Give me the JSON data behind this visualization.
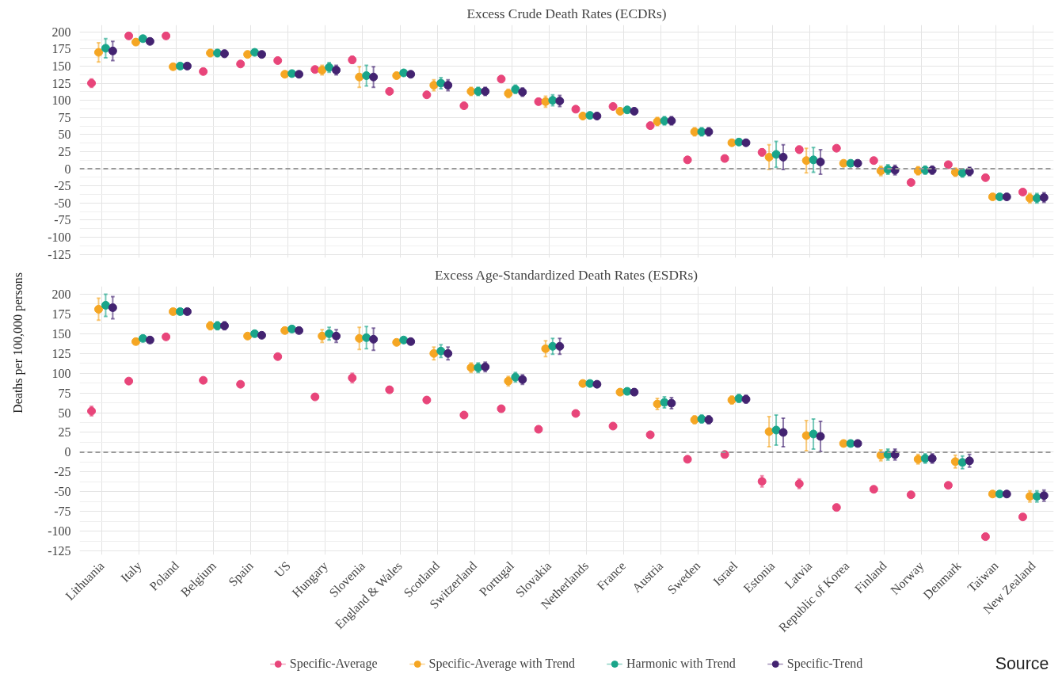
{
  "chart_data": [
    {
      "type": "scatter",
      "title": "Excess Crude Death Rates (ECDRs)",
      "ylabel": "Deaths per 100,000 persons",
      "categories": [
        "Lithuania",
        "Italy",
        "Poland",
        "Belgium",
        "Spain",
        "US",
        "Hungary",
        "Slovenia",
        "England & Wales",
        "Scotland",
        "Switzerland",
        "Portugal",
        "Slovakia",
        "Netherlands",
        "France",
        "Austria",
        "Sweden",
        "Israel",
        "Estonia",
        "Latvia",
        "Republic of Korea",
        "Finland",
        "Norway",
        "Denmark",
        "Taiwan",
        "New Zealand"
      ],
      "ylim": [
        -130,
        210
      ],
      "yticks": [
        -125,
        -100,
        -75,
        -50,
        -25,
        0,
        25,
        50,
        75,
        100,
        125,
        150,
        175,
        200
      ],
      "grid": true,
      "marker": "circle",
      "tick_labels": "y",
      "legend": "bottom",
      "ref_lines": [
        {
          "axis": "y",
          "value": 0,
          "color": "#999999",
          "line_style": "dashed"
        }
      ],
      "series": [
        {
          "name": "Specific-Average",
          "color": "#e8457a",
          "values": [
            125,
            194,
            194,
            142,
            153,
            158,
            145,
            159,
            113,
            108,
            92,
            131,
            98,
            87,
            91,
            63,
            13,
            15,
            24,
            28,
            30,
            12,
            -20,
            6,
            -13,
            -34
          ],
          "errors": [
            6,
            2,
            2,
            2,
            2,
            2,
            2,
            5,
            2,
            2,
            2,
            2,
            3,
            2,
            2,
            2,
            2,
            2,
            5,
            5,
            2,
            3,
            3,
            3,
            2,
            2
          ]
        },
        {
          "name": "Specific-Average with Trend",
          "color": "#f5a623",
          "values": [
            170,
            185,
            149,
            169,
            167,
            138,
            144,
            134,
            136,
            122,
            113,
            110,
            98,
            77,
            84,
            69,
            54,
            38,
            17,
            12,
            8,
            -3,
            -3,
            -5,
            -41,
            -43
          ],
          "errors": [
            14,
            2,
            3,
            5,
            2,
            2,
            7,
            15,
            2,
            8,
            6,
            6,
            8,
            3,
            2,
            6,
            6,
            3,
            18,
            18,
            2,
            7,
            6,
            6,
            3,
            7
          ]
        },
        {
          "name": "Harmonic with Trend",
          "color": "#1aa58a",
          "values": [
            176,
            190,
            150,
            169,
            170,
            139,
            148,
            136,
            140,
            125,
            113,
            116,
            100,
            78,
            86,
            70,
            54,
            39,
            21,
            13,
            8,
            -1,
            -2,
            -6,
            -41,
            -43
          ],
          "errors": [
            14,
            2,
            3,
            5,
            2,
            2,
            7,
            15,
            2,
            8,
            6,
            6,
            8,
            3,
            2,
            6,
            6,
            3,
            19,
            18,
            2,
            7,
            6,
            6,
            3,
            7
          ]
        },
        {
          "name": "Specific-Trend",
          "color": "#432371",
          "values": [
            172,
            186,
            150,
            168,
            167,
            138,
            144,
            134,
            138,
            122,
            113,
            112,
            99,
            77,
            84,
            70,
            54,
            38,
            17,
            10,
            8,
            -2,
            -2,
            -4,
            -41,
            -42
          ],
          "errors": [
            14,
            2,
            3,
            5,
            2,
            2,
            7,
            15,
            2,
            8,
            6,
            6,
            8,
            3,
            2,
            6,
            6,
            3,
            18,
            18,
            2,
            7,
            6,
            6,
            3,
            7
          ]
        }
      ]
    },
    {
      "type": "scatter",
      "title": "Excess Age-Standardized Death Rates (ESDRs)",
      "ylim": [
        -130,
        210
      ],
      "yticks": [
        -125,
        -100,
        -75,
        -50,
        -25,
        0,
        25,
        50,
        75,
        100,
        125,
        150,
        175,
        200
      ],
      "grid": true,
      "marker": "circle",
      "ref_lines": [
        {
          "axis": "y",
          "value": 0,
          "color": "#999999",
          "line_style": "dashed"
        }
      ],
      "annotations": [
        "Source"
      ],
      "series": [
        {
          "color": "#e8457a",
          "values": [
            52,
            90,
            146,
            91,
            86,
            121,
            70,
            94,
            79,
            66,
            47,
            55,
            29,
            49,
            33,
            22,
            -9,
            -3,
            -37,
            -40,
            -70,
            -47,
            -54,
            -42,
            -107,
            -82
          ],
          "errors": [
            6,
            2,
            2,
            2,
            2,
            2,
            2,
            6,
            2,
            2,
            2,
            2,
            3,
            2,
            2,
            2,
            2,
            2,
            7,
            6,
            2,
            3,
            3,
            3,
            2,
            3
          ]
        },
        {
          "color": "#f5a623",
          "values": [
            181,
            140,
            178,
            160,
            147,
            154,
            147,
            144,
            139,
            125,
            107,
            90,
            131,
            87,
            76,
            61,
            41,
            66,
            26,
            21,
            11,
            -4,
            -9,
            -12,
            -53,
            -56
          ],
          "errors": [
            14,
            2,
            2,
            5,
            2,
            2,
            8,
            14,
            2,
            8,
            6,
            6,
            10,
            3,
            2,
            7,
            5,
            5,
            19,
            19,
            2,
            7,
            6,
            8,
            2,
            7
          ]
        },
        {
          "color": "#1aa58a",
          "values": [
            186,
            144,
            178,
            160,
            150,
            156,
            150,
            145,
            142,
            128,
            107,
            95,
            134,
            87,
            77,
            63,
            42,
            68,
            28,
            23,
            11,
            -3,
            -8,
            -13,
            -53,
            -56
          ],
          "errors": [
            14,
            2,
            2,
            5,
            2,
            2,
            8,
            14,
            2,
            8,
            6,
            6,
            10,
            3,
            2,
            7,
            5,
            5,
            19,
            19,
            2,
            7,
            6,
            8,
            2,
            7
          ]
        },
        {
          "color": "#432371",
          "values": [
            183,
            142,
            178,
            160,
            148,
            154,
            147,
            143,
            140,
            125,
            108,
            92,
            134,
            86,
            76,
            62,
            41,
            67,
            25,
            20,
            11,
            -3,
            -8,
            -11,
            -53,
            -55
          ],
          "errors": [
            14,
            2,
            2,
            5,
            2,
            2,
            8,
            14,
            2,
            8,
            6,
            6,
            10,
            3,
            2,
            7,
            5,
            5,
            18,
            19,
            2,
            7,
            6,
            8,
            2,
            7
          ]
        }
      ]
    }
  ]
}
